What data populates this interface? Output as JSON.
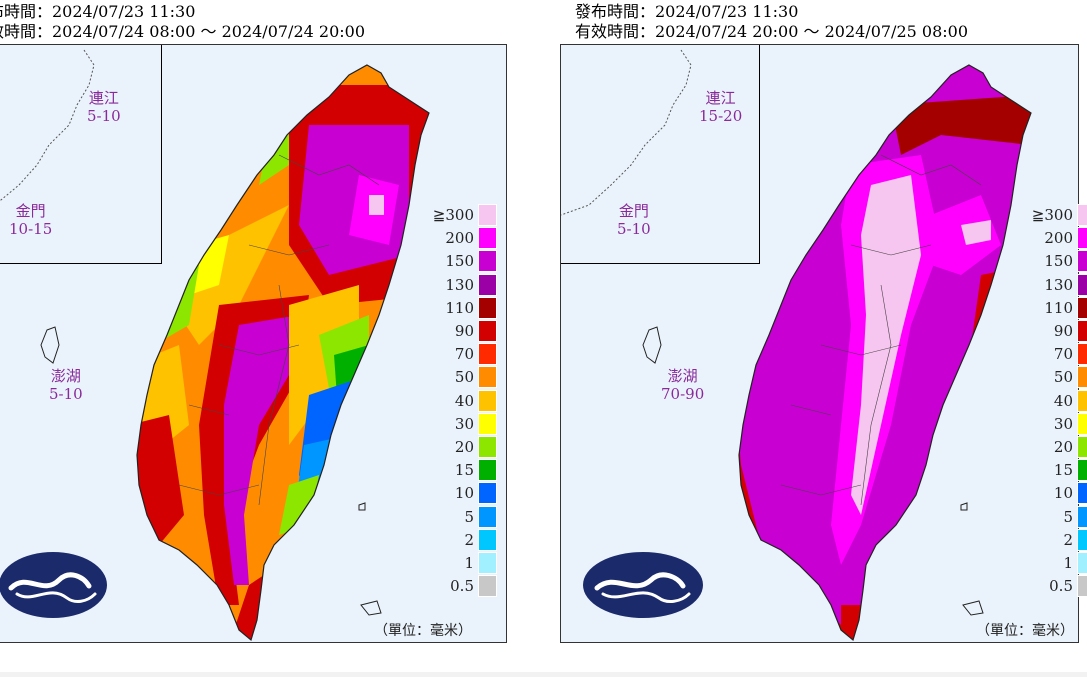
{
  "panels": [
    {
      "issue_time": "布時間：2024/07/23 11:30",
      "valid_time": "效時間：2024/07/24 08:00 ～ 2024/07/24 20:00",
      "islands": [
        {
          "name": "連江",
          "range": "5-10"
        },
        {
          "name": "金門",
          "range": "10-15"
        },
        {
          "name": "澎湖",
          "range": "5-10"
        }
      ],
      "unit": "（單位：毫米）"
    },
    {
      "issue_time": "發布時間：2024/07/23 11:30",
      "valid_time": "有效時間：2024/07/24 20:00 ～ 2024/07/25 08:00",
      "islands": [
        {
          "name": "連江",
          "range": "15-20"
        },
        {
          "name": "金門",
          "range": "5-10"
        },
        {
          "name": "澎湖",
          "range": "70-90"
        }
      ],
      "unit": "（單位：毫米）"
    }
  ],
  "legend": {
    "ticks": [
      "≧300",
      "200",
      "150",
      "130",
      "110",
      "90",
      "70",
      "50",
      "40",
      "30",
      "20",
      "15",
      "10",
      "5",
      "2",
      "1",
      "0.5"
    ],
    "colors": [
      "#f7c6f0",
      "#ff00ff",
      "#c800d2",
      "#9a00a6",
      "#a50000",
      "#d20000",
      "#ff2a00",
      "#ff8c00",
      "#ffc200",
      "#ffff00",
      "#8de600",
      "#00b000",
      "#0064ff",
      "#0096ff",
      "#00c8ff",
      "#a0f0ff",
      "#c8c8c8"
    ]
  },
  "colors": {
    "island_label": "#8a2a9a",
    "logo_navy": "#1b2a6b",
    "sea": "#eaf3fb"
  }
}
